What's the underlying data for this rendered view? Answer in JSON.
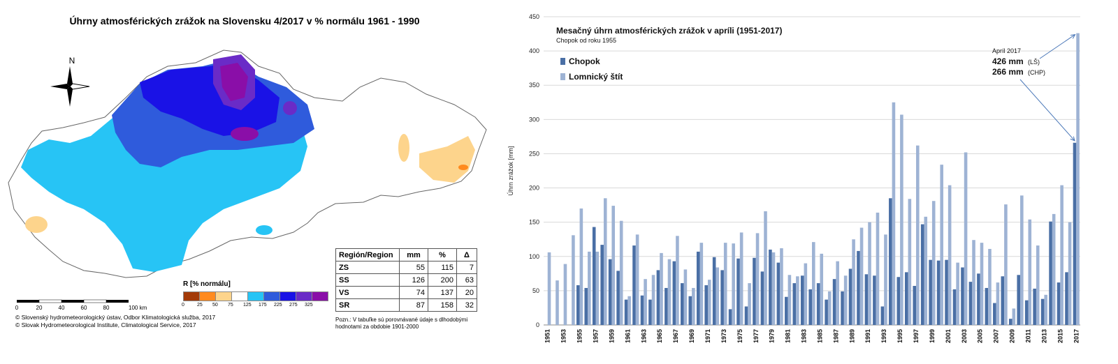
{
  "map": {
    "title": "Úhrny atmosférických zrážok na Slovensku 4/2017 v % normálu 1961 - 1990",
    "north_label": "N",
    "scale_labels": [
      "0",
      "20",
      "40",
      "60",
      "80",
      "100 km"
    ],
    "legend_title": "R [% normálu]",
    "legend_colors": [
      "#a33a08",
      "#ff8a1e",
      "#fdd48c",
      "#ffffff",
      "#27c4f5",
      "#2f5bdc",
      "#1a12e6",
      "#6a2bc7",
      "#8a0ea8"
    ],
    "legend_ticks": [
      "0",
      "25",
      "50",
      "75",
      "125",
      "175",
      "225",
      "275",
      "325"
    ],
    "copyright_1": "© Slovenský hydrometeorologický ústav, Odbor Klimatologická služba, 2017",
    "copyright_2": "© Slovak Hydrometeorological Institute, Climatological Service, 2017",
    "table_headers": [
      "Región/Region",
      "mm",
      "%",
      "Δ"
    ],
    "table_rows": [
      {
        "region": "ZS",
        "mm": "55",
        "pct": "115",
        "delta": "7"
      },
      {
        "region": "SS",
        "mm": "126",
        "pct": "200",
        "delta": "63"
      },
      {
        "region": "VS",
        "mm": "74",
        "pct": "137",
        "delta": "20"
      },
      {
        "region": "SR",
        "mm": "87",
        "pct": "158",
        "delta": "32"
      }
    ],
    "note": "Pozn.: V tabuľke sú porovnávané údaje s dlhodobými hodnotami za obdobie 1901-2000"
  },
  "chart_data": {
    "type": "bar",
    "title": "Mesačný úhrn atmosférických zrážok v apríli (1951-2017)",
    "subtitle": "Chopok od roku 1955",
    "ylabel": "Úhrn zrážok [mm]",
    "xlabel": "",
    "ylim": [
      0,
      450
    ],
    "yticks": [
      0,
      50,
      100,
      150,
      200,
      250,
      300,
      350,
      400,
      450
    ],
    "x": [
      1951,
      1952,
      1953,
      1954,
      1955,
      1956,
      1957,
      1958,
      1959,
      1960,
      1961,
      1962,
      1963,
      1964,
      1965,
      1966,
      1967,
      1968,
      1969,
      1970,
      1971,
      1972,
      1973,
      1974,
      1975,
      1976,
      1977,
      1978,
      1979,
      1980,
      1981,
      1982,
      1983,
      1984,
      1985,
      1986,
      1987,
      1988,
      1989,
      1990,
      1991,
      1992,
      1993,
      1994,
      1995,
      1996,
      1997,
      1998,
      1999,
      2000,
      2001,
      2002,
      2003,
      2004,
      2005,
      2006,
      2007,
      2008,
      2009,
      2010,
      2011,
      2012,
      2013,
      2014,
      2015,
      2016,
      2017
    ],
    "series": [
      {
        "name": "Chopok",
        "color": "#4a6fa5",
        "values": [
          null,
          null,
          null,
          null,
          58,
          54,
          143,
          117,
          96,
          79,
          37,
          116,
          43,
          37,
          80,
          54,
          93,
          61,
          42,
          107,
          58,
          99,
          80,
          23,
          97,
          27,
          98,
          78,
          110,
          91,
          41,
          61,
          72,
          52,
          61,
          37,
          67,
          49,
          82,
          108,
          74,
          72,
          27,
          185,
          70,
          77,
          57,
          147,
          95,
          94,
          95,
          52,
          84,
          63,
          75,
          54,
          32,
          71,
          9,
          73,
          36,
          53,
          38,
          151,
          62,
          77,
          266
        ]
      },
      {
        "name": "Lomnický štít",
        "color": "#9eb3d4",
        "values": [
          106,
          65,
          89,
          131,
          170,
          107,
          107,
          185,
          174,
          152,
          42,
          132,
          67,
          73,
          105,
          96,
          130,
          81,
          54,
          120,
          66,
          84,
          120,
          119,
          135,
          61,
          134,
          166,
          106,
          112,
          73,
          71,
          90,
          121,
          104,
          49,
          93,
          72,
          125,
          142,
          150,
          164,
          132,
          325,
          307,
          184,
          262,
          158,
          181,
          234,
          204,
          91,
          252,
          124,
          120,
          111,
          62,
          176,
          24,
          189,
          154,
          116,
          44,
          162,
          204,
          150,
          426
        ]
      }
    ],
    "annotation": {
      "line1": "Apríl 2017",
      "line2_value": "426 mm",
      "line2_unit": "(LŠ)",
      "line3_value": "266 mm",
      "line3_unit": "(CHP)"
    }
  }
}
